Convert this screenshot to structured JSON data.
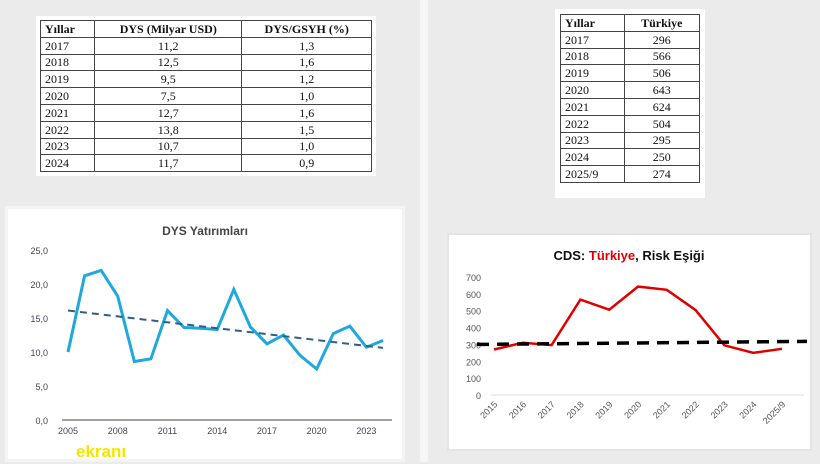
{
  "table1": {
    "headers": [
      "Yıllar",
      "DYS (Milyar USD)",
      "DYS/GSYH (%)"
    ],
    "rows": [
      [
        "2017",
        "11,2",
        "1,3"
      ],
      [
        "2018",
        "12,5",
        "1,6"
      ],
      [
        "2019",
        "9,5",
        "1,2"
      ],
      [
        "2020",
        "7,5",
        "1,0"
      ],
      [
        "2021",
        "12,7",
        "1,6"
      ],
      [
        "2022",
        "13,8",
        "1,5"
      ],
      [
        "2023",
        "10,7",
        "1,0"
      ],
      [
        "2024",
        "11,7",
        "0,9"
      ]
    ]
  },
  "table2": {
    "headers": [
      "Yıllar",
      "Türkiye"
    ],
    "rows": [
      [
        "2017",
        "296"
      ],
      [
        "2018",
        "566"
      ],
      [
        "2019",
        "506"
      ],
      [
        "2020",
        "643"
      ],
      [
        "2021",
        "624"
      ],
      [
        "2022",
        "504"
      ],
      [
        "2023",
        "295"
      ],
      [
        "2024",
        "250"
      ],
      [
        "2025/9",
        "274"
      ]
    ]
  },
  "watermark": "ekranı",
  "chart_data": [
    {
      "type": "line",
      "title": "DYS Yatırımları",
      "x": [
        2005,
        2006,
        2007,
        2008,
        2009,
        2010,
        2011,
        2012,
        2013,
        2014,
        2015,
        2016,
        2017,
        2018,
        2019,
        2020,
        2021,
        2022,
        2023,
        2024
      ],
      "series": [
        {
          "name": "DYS",
          "values": [
            10.0,
            21.2,
            22.0,
            18.2,
            8.6,
            9.0,
            16.1,
            13.6,
            13.5,
            13.3,
            19.2,
            13.7,
            11.2,
            12.5,
            9.5,
            7.5,
            12.7,
            13.8,
            10.7,
            11.7
          ],
          "color": "#1fa8dc"
        },
        {
          "name": "Trend",
          "values_start_end": [
            16.1,
            10.6
          ],
          "style": "dashed",
          "color": "#2e5f8a"
        }
      ],
      "xticks": [
        "2005",
        "2008",
        "2011",
        "2014",
        "2017",
        "2020",
        "2023"
      ],
      "yticks": [
        "0,0",
        "5,0",
        "10,0",
        "15,0",
        "20,0",
        "25,0"
      ],
      "ylim": [
        0,
        25
      ]
    },
    {
      "type": "line",
      "title_parts": [
        "CDS: ",
        "Türkiye",
        ", Risk Eşiği"
      ],
      "categories": [
        "2015",
        "2016",
        "2017",
        "2018",
        "2019",
        "2020",
        "2021",
        "2022",
        "2023",
        "2024",
        "2025/9"
      ],
      "series": [
        {
          "name": "Türkiye",
          "values": [
            270,
            310,
            296,
            566,
            506,
            643,
            624,
            504,
            295,
            250,
            274
          ],
          "color": "#e00000"
        },
        {
          "name": "Risk Eşiği",
          "values_start_end": [
            300,
            318
          ],
          "style": "dashed",
          "color": "#000000"
        }
      ],
      "yticks": [
        "0",
        "100",
        "200",
        "300",
        "400",
        "500",
        "600",
        "700"
      ],
      "ylim": [
        0,
        700
      ]
    }
  ]
}
